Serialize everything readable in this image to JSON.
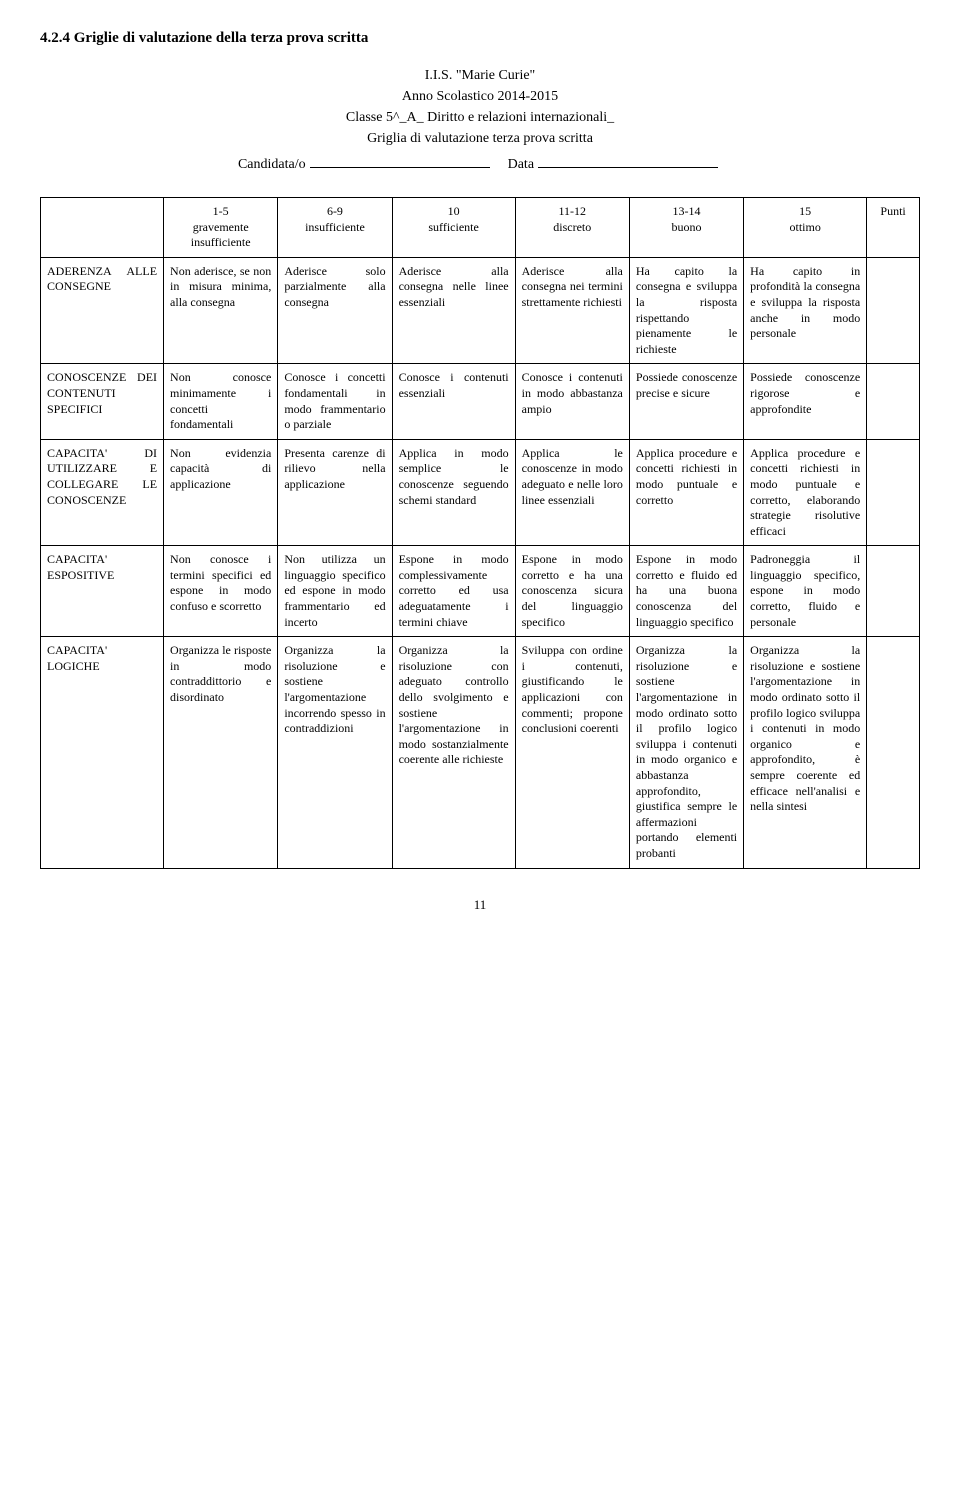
{
  "section_heading": "4.2.4  Griglie di valutazione della terza prova scritta",
  "header": {
    "school": "I.I.S. \"Marie Curie\"",
    "year": "Anno Scolastico 2014-2015",
    "class": "Classe 5^_A_ Diritto e relazioni internazionali_",
    "subtitle": "Griglia di valutazione terza prova scritta",
    "candidate_label": "Candidata/o",
    "date_label": "Data"
  },
  "columns": [
    {
      "num": "",
      "label": ""
    },
    {
      "num": "1-5",
      "label": "gravemente insufficiente"
    },
    {
      "num": "6-9",
      "label": "insufficiente"
    },
    {
      "num": "10",
      "label": "sufficiente"
    },
    {
      "num": "11-12",
      "label": "discreto"
    },
    {
      "num": "13-14",
      "label": "buono"
    },
    {
      "num": "15",
      "label": "ottimo"
    },
    {
      "num": "",
      "label": "Punti"
    }
  ],
  "rows": [
    {
      "head": "ADERENZA ALLE CONSEGNE",
      "c1": "Non aderisce, se non in misura minima, alla consegna",
      "c2": "Aderisce solo parzialmente alla consegna",
      "c3": "Aderisce alla consegna nelle linee essenziali",
      "c4": "Aderisce alla consegna nei termini strettamente richiesti",
      "c5": "Ha capito la consegna e sviluppa la risposta rispettando pienamente le richieste",
      "c6": "Ha capito in profondità la consegna e sviluppa la risposta anche in modo personale",
      "c7": ""
    },
    {
      "head": "CONOSCENZE DEI CONTENUTI SPECIFICI",
      "c1": "Non conosce minimamente i concetti fondamentali",
      "c2": "Conosce i concetti fondamentali in modo frammentario o parziale",
      "c3": "Conosce i contenuti essenziali",
      "c4": "Conosce i contenuti in modo abbastanza ampio",
      "c5": "Possiede conoscenze precise e sicure",
      "c6": "Possiede conoscenze rigorose e approfondite",
      "c7": ""
    },
    {
      "head": "CAPACITA' DI UTILIZZARE E COLLEGARE LE CONOSCENZE",
      "c1": "Non evidenzia capacità di applicazione",
      "c2": "Presenta carenze di rilievo nella applicazione",
      "c3": "Applica in modo semplice le conoscenze seguendo schemi standard",
      "c4": "Applica le conoscenze in modo adeguato e nelle loro linee essenziali",
      "c5": "Applica procedure e concetti richiesti in modo puntuale e corretto",
      "c6": "Applica procedure e concetti richiesti in modo puntuale e corretto, elaborando strategie risolutive efficaci",
      "c7": ""
    },
    {
      "head": "CAPACITA' ESPOSITIVE",
      "c1": "Non conosce i termini specifici ed espone in modo confuso e scorretto",
      "c2": "Non utilizza un linguaggio specifico ed espone in modo frammentario ed incerto",
      "c3": "Espone in modo complessivamente corretto ed usa adeguatamente i termini chiave",
      "c4": "Espone in modo corretto e ha una conoscenza sicura del linguaggio specifico",
      "c5": "Espone in modo corretto e fluido ed ha una buona conoscenza del linguaggio specifico",
      "c6": "Padroneggia il linguaggio specifico, espone in modo corretto, fluido e personale",
      "c7": ""
    },
    {
      "head": "CAPACITA' LOGICHE",
      "c1": "Organizza le risposte in modo contraddittorio e disordinato",
      "c2": "Organizza la risoluzione e sostiene l'argomentazione incorrendo spesso in contraddizioni",
      "c3": "Organizza la risoluzione con adeguato controllo dello svolgimento e sostiene l'argomentazione in modo sostanzialmente coerente alle richieste",
      "c4": "Sviluppa con ordine i contenuti, giustificando le applicazioni con commenti; propone conclusioni coerenti",
      "c5": "Organizza la risoluzione e sostiene l'argomentazione in modo ordinato sotto il profilo logico sviluppa i contenuti in modo organico e abbastanza approfondito, giustifica sempre le affermazioni portando elementi probanti",
      "c6": "Organizza la risoluzione e sostiene l'argomentazione in modo ordinato sotto il profilo logico sviluppa i contenuti in modo organico e approfondito, è sempre coerente ed efficace nell'analisi e nella sintesi",
      "c7": ""
    }
  ],
  "page_number": "11"
}
